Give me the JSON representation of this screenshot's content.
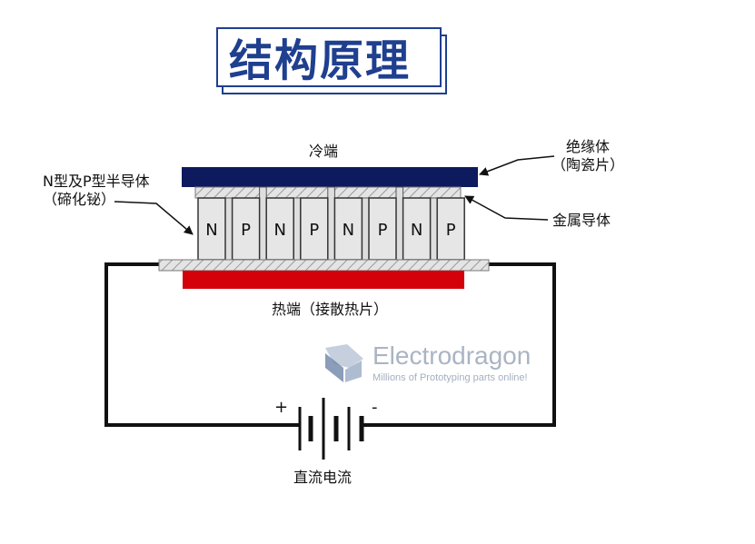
{
  "title": "结构原理",
  "labels": {
    "cold_end": "冷端",
    "insulator_line1": "绝缘体",
    "insulator_line2": "（陶瓷片）",
    "np_line1": "N型及P型半导体",
    "np_line2": "（碲化铋）",
    "metal_conductor": "金属导体",
    "hot_end": "热端（接散热片）",
    "dc": "直流电流",
    "plus": "+",
    "minus": "-"
  },
  "semiconductors": [
    "N",
    "P",
    "N",
    "P",
    "N",
    "P",
    "N",
    "P"
  ],
  "colors": {
    "title": "#1f3f8f",
    "cold_plate": "#0d1a5e",
    "hot_plate": "#d4000a",
    "wire": "#111111"
  },
  "watermark": {
    "name": "Electrodragon",
    "tagline": "Millions of Prototyping parts online!"
  }
}
